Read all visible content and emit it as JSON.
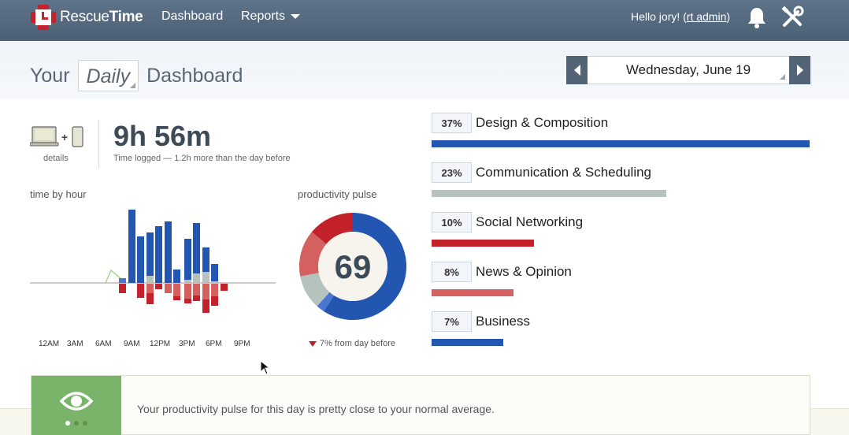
{
  "app": {
    "name_light": "Rescue",
    "name_bold": "Time"
  },
  "nav": {
    "dashboard": "Dashboard",
    "reports": "Reports"
  },
  "user": {
    "greeting_prefix": "Hello jory! (",
    "role": "rt admin",
    "greeting_suffix": ")"
  },
  "icons": {
    "logo": "rescuetime-logo-icon",
    "bell": "bell-icon",
    "tools": "tools-icon",
    "eye": "eye-icon"
  },
  "header": {
    "your": "Your",
    "period": "Daily",
    "dashboard": "Dashboard",
    "date": "Wednesday, June 19"
  },
  "summary": {
    "details": "details",
    "plus": "+",
    "total_time": "9h 56m",
    "time_sub": "Time logged — 1.2h more than the day before"
  },
  "hours": {
    "label": "time by hour",
    "ticks": [
      "12AM",
      "3AM",
      "6AM",
      "9AM",
      "12PM",
      "3PM",
      "6PM",
      "9PM"
    ]
  },
  "pulse": {
    "label": "productivity pulse",
    "score": "69",
    "change": "7% from day before"
  },
  "categories": [
    {
      "pct": "37%",
      "name": "Design & Composition",
      "value": 0.37,
      "color": "#2356b0"
    },
    {
      "pct": "23%",
      "name": "Communication & Scheduling",
      "value": 0.23,
      "color": "#b5c2be"
    },
    {
      "pct": "10%",
      "name": "Social Networking",
      "value": 0.1,
      "color": "#c4222a"
    },
    {
      "pct": "8%",
      "name": "News & Opinion",
      "value": 0.08,
      "color": "#d4605f"
    },
    {
      "pct": "7%",
      "name": "Business",
      "value": 0.07,
      "color": "#2356b0"
    }
  ],
  "insight": {
    "text": "Your productivity pulse for this day is pretty close to your normal average."
  },
  "colors": {
    "very_productive": "#2356b0",
    "productive": "#4a78cf",
    "neutral": "#b5c2be",
    "distracting": "#d4605f",
    "very_distracting": "#c4222a",
    "insight_green": "#7ab46b"
  }
}
